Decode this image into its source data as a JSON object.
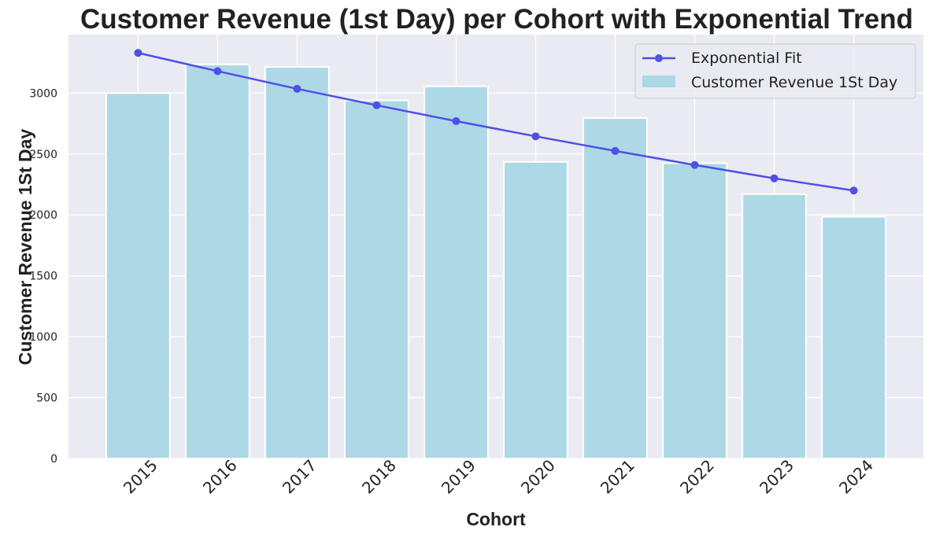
{
  "chart_data": {
    "type": "bar",
    "title": "Customer Revenue (1st Day) per Cohort with Exponential Trend",
    "xlabel": "Cohort",
    "ylabel": "Customer Revenue 1St Day",
    "categories": [
      "2015",
      "2016",
      "2017",
      "2018",
      "2019",
      "2020",
      "2021",
      "2022",
      "2023",
      "2024"
    ],
    "series": [
      {
        "name": "Customer Revenue 1St Day",
        "kind": "bar",
        "color": "#add8e6",
        "values": [
          3000,
          3235,
          3215,
          2940,
          3055,
          2435,
          2795,
          2425,
          2170,
          1985
        ]
      },
      {
        "name": "Exponential Fit",
        "kind": "line",
        "color": "#5050e6",
        "values": [
          3330,
          3180,
          3035,
          2900,
          2770,
          2645,
          2525,
          2410,
          2300,
          2200
        ]
      }
    ],
    "ylim": [
      0,
      3480
    ],
    "yticks": [
      0,
      500,
      1000,
      1500,
      2000,
      2500,
      3000
    ],
    "grid": true,
    "legend": "top-right",
    "background": "#eaeaf2"
  }
}
